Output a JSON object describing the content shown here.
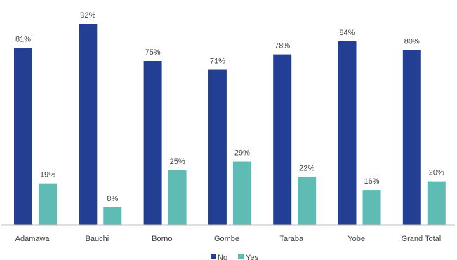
{
  "chart_data": {
    "type": "bar",
    "categories": [
      "Adamawa",
      "Bauchi",
      "Borno",
      "Gombe",
      "Taraba",
      "Yobe",
      "Grand Total"
    ],
    "series": [
      {
        "name": "No",
        "values": [
          81,
          92,
          75,
          71,
          78,
          84,
          80
        ],
        "labels": [
          "81%",
          "92%",
          "75%",
          "71%",
          "78%",
          "84%",
          "80%"
        ],
        "color": "#233F94"
      },
      {
        "name": "Yes",
        "values": [
          19,
          8,
          25,
          29,
          22,
          16,
          20
        ],
        "labels": [
          "19%",
          "8%",
          "25%",
          "29%",
          "22%",
          "16%",
          "20%"
        ],
        "color": "#5EBCB5"
      }
    ],
    "ylim": [
      0,
      100
    ],
    "grid": false,
    "legend": "bottom-center",
    "axis_color": "#BFBFBF"
  }
}
